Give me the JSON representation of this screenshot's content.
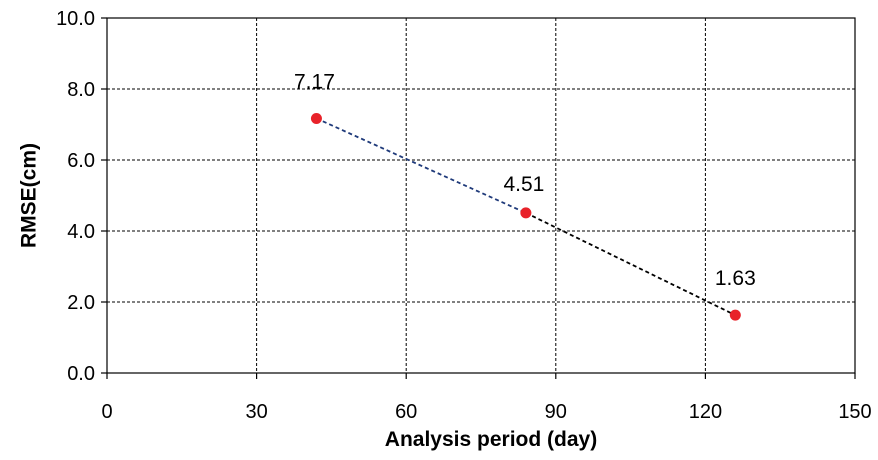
{
  "chart_data": {
    "type": "scatter",
    "title": "",
    "xlabel": "Analysis period (day)",
    "ylabel": "RMSE(cm)",
    "xlim": [
      0,
      150
    ],
    "ylim": [
      0,
      10
    ],
    "xticks": [
      0,
      30,
      60,
      90,
      120,
      150
    ],
    "yticks": [
      0,
      2,
      4,
      6,
      8,
      10
    ],
    "xtick_labels": [
      "0",
      "30",
      "60",
      "90",
      "120",
      "150"
    ],
    "ytick_labels": [
      "0.0",
      "2.0",
      "4.0",
      "6.0",
      "8.0",
      "10.0"
    ],
    "grid": true,
    "legend": "none",
    "series": [
      {
        "x": [
          42,
          84,
          126
        ],
        "y": [
          7.17,
          4.51,
          1.63
        ],
        "labels": [
          "7.17",
          "4.51",
          "1.63"
        ],
        "marker_color": "#e8222a",
        "line_style": "dashed",
        "line_colors": [
          "#1f3a7a",
          "#000000"
        ]
      }
    ]
  }
}
